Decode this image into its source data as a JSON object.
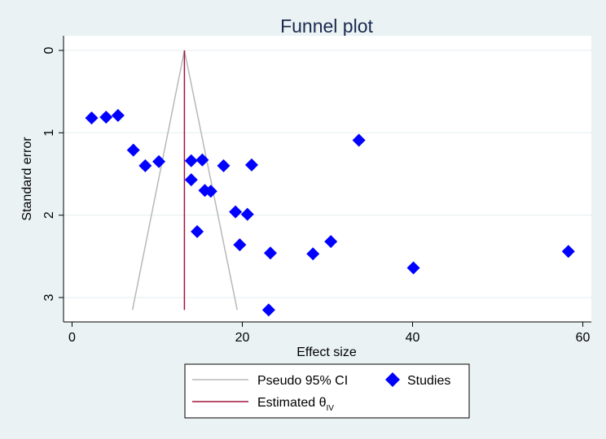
{
  "chart_data": {
    "type": "scatter",
    "title": "Funnel plot",
    "xlabel": "Effect size",
    "ylabel": "Standard error",
    "xlim": [
      -1,
      61
    ],
    "ylim": [
      0,
      3.16
    ],
    "y_reversed": true,
    "grid": true,
    "x_ticks": [
      0,
      20,
      40,
      60
    ],
    "y_ticks": [
      0,
      1,
      2,
      3
    ],
    "estimate": 13.2,
    "pseudo_ci": {
      "apex": [
        13.2,
        0
      ],
      "lower_base": [
        7.1,
        3.15
      ],
      "upper_base": [
        19.4,
        3.15
      ]
    },
    "series": [
      {
        "name": "Studies",
        "marker": "diamond",
        "color": "#0000ff",
        "points": [
          [
            2.3,
            0.82
          ],
          [
            4.0,
            0.81
          ],
          [
            5.4,
            0.79
          ],
          [
            7.2,
            1.21
          ],
          [
            8.6,
            1.4
          ],
          [
            10.2,
            1.35
          ],
          [
            14.0,
            1.34
          ],
          [
            15.3,
            1.33
          ],
          [
            14.0,
            1.57
          ],
          [
            15.6,
            1.7
          ],
          [
            16.3,
            1.71
          ],
          [
            17.8,
            1.4
          ],
          [
            21.1,
            1.39
          ],
          [
            19.2,
            1.96
          ],
          [
            20.6,
            1.99
          ],
          [
            14.7,
            2.2
          ],
          [
            19.7,
            2.36
          ],
          [
            23.3,
            2.46
          ],
          [
            28.3,
            2.47
          ],
          [
            30.4,
            2.32
          ],
          [
            33.7,
            1.09
          ],
          [
            40.1,
            2.64
          ],
          [
            58.3,
            2.44
          ],
          [
            23.1,
            3.15
          ]
        ]
      }
    ],
    "legend": {
      "position": "bottom",
      "ci_label": "Pseudo 95% CI",
      "studies_label": "Studies",
      "estimate_label": "Estimated θ",
      "estimate_subscript": "IV"
    },
    "colors": {
      "ci_line": "#b8b8b8",
      "estimate_line": "#a0153e",
      "marker": "#0000ff",
      "title": "#1a2a4f",
      "background": "#eaf2f3",
      "plot_bg": "#ffffff",
      "grid": "#e4eef0"
    }
  }
}
